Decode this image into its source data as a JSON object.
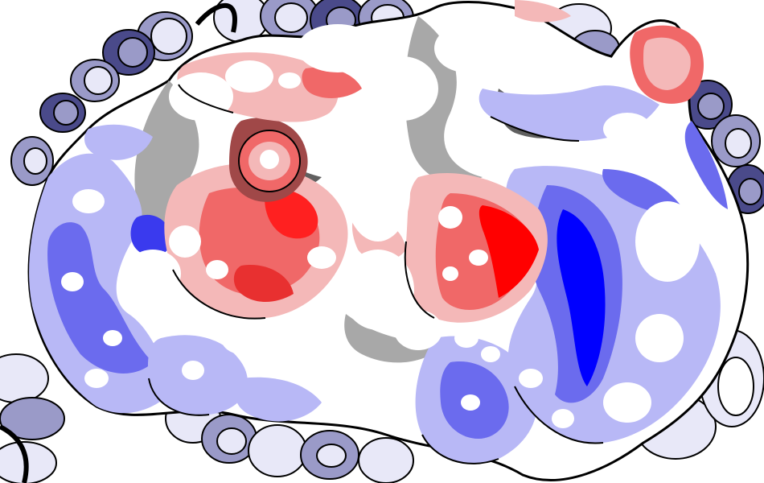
{
  "figure": {
    "subject": "protein-surface-electrostatics",
    "representation": [
      "cartoon-ribbons",
      "molecular-surface"
    ],
    "colors": {
      "background": "#ffffff",
      "outline": "#000000",
      "ribbon_light": "#e8e8f8",
      "ribbon_mid": "#9a9ac8",
      "ribbon_dark": "#4a4a8a",
      "neutral_surface": "#ffffff",
      "neutral_shadow": "#a8a8a8",
      "neutral_shadow_dark": "#606060",
      "negative_light": "#f4b8b8",
      "negative_mid": "#f06868",
      "negative_strong": "#ff0000",
      "negative_shadow": "#a04848",
      "positive_light": "#b8b8f6",
      "positive_mid": "#6b6bee",
      "positive_strong": "#0000ff",
      "positive_shadow": "#3a3a8c"
    }
  }
}
